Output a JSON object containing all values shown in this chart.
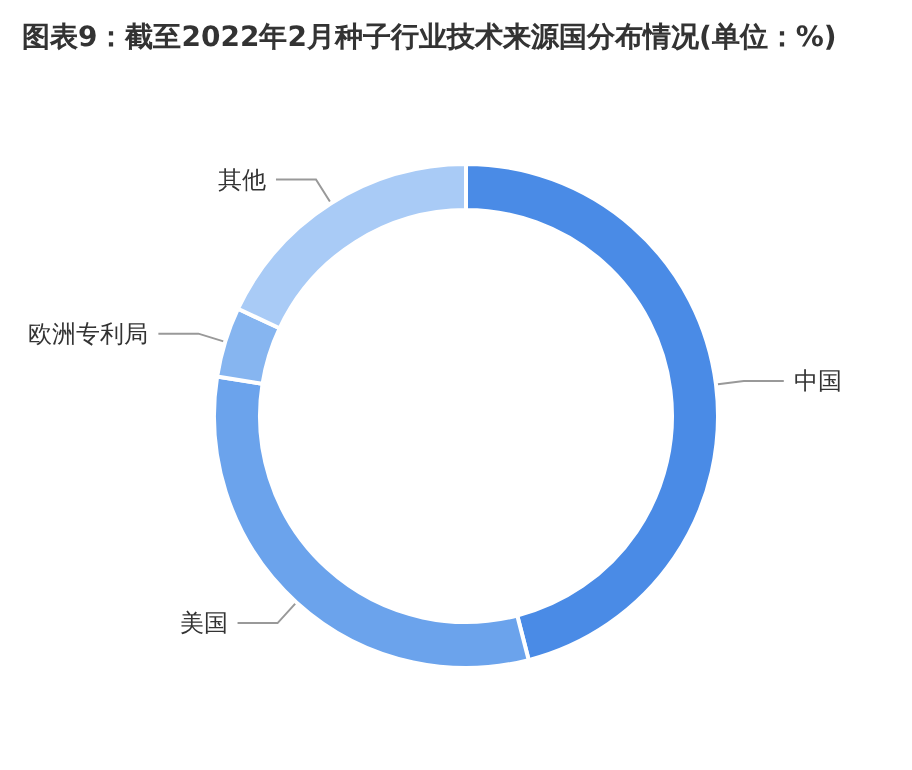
{
  "chart_data": {
    "type": "donut",
    "title": "图表9：截至2022年2月种子行业技术来源国分布情况(单位：%)",
    "categories": [
      "中国",
      "美国",
      "欧洲专利局",
      "其他"
    ],
    "values": [
      46,
      31.5,
      4.5,
      18
    ],
    "colors": [
      "#4a8be6",
      "#6ba3ec",
      "#86b5f0",
      "#a9cbf6"
    ],
    "legend": false
  }
}
